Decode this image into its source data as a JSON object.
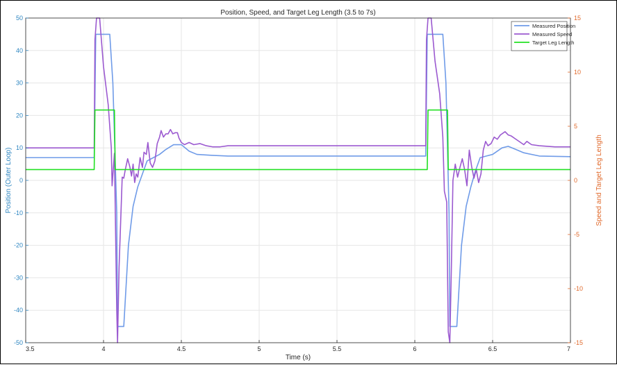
{
  "chart_data": {
    "type": "line",
    "title": "Position, Speed, and Target Leg Length (3.5 to 7s)",
    "xlabel": "Time (s)",
    "ylabel_left": "Position (Outer Loop)",
    "ylabel_right": "Speed and Target Leg Length",
    "xlim": [
      3.5,
      7
    ],
    "ylim_left": [
      -50,
      50
    ],
    "ylim_right": [
      -15,
      15
    ],
    "grid": true,
    "legend_position": "top-right",
    "x_ticks": [
      "3.5",
      "4",
      "4.5",
      "5",
      "5.5",
      "6",
      "6.5",
      "7"
    ],
    "y_ticks_left": [
      "-50",
      "-40",
      "-30",
      "-20",
      "-10",
      "0",
      "10",
      "20",
      "30",
      "40",
      "50"
    ],
    "y_ticks_right": [
      "-15",
      "-10",
      "-5",
      "0",
      "5",
      "10",
      "15"
    ],
    "colors": {
      "left_axis": "#2e86c1",
      "right_axis": "#e06a2c",
      "grid": "#e6e6e6"
    },
    "series": [
      {
        "name": "Measured Position",
        "axis": "left",
        "color": "#6f9be8",
        "points": [
          [
            3.5,
            7
          ],
          [
            3.94,
            7
          ],
          [
            3.95,
            45
          ],
          [
            4.04,
            45
          ],
          [
            4.06,
            30
          ],
          [
            4.085,
            -10
          ],
          [
            4.09,
            -45
          ],
          [
            4.13,
            -45
          ],
          [
            4.16,
            -20
          ],
          [
            4.19,
            -8
          ],
          [
            4.22,
            -2
          ],
          [
            4.25,
            2
          ],
          [
            4.28,
            6
          ],
          [
            4.32,
            7
          ],
          [
            4.36,
            8
          ],
          [
            4.4,
            9.5
          ],
          [
            4.45,
            11
          ],
          [
            4.5,
            11
          ],
          [
            4.55,
            9
          ],
          [
            4.6,
            8
          ],
          [
            4.7,
            7.7
          ],
          [
            4.8,
            7.5
          ],
          [
            5.0,
            7.5
          ],
          [
            5.5,
            7.5
          ],
          [
            6.07,
            7.5
          ],
          [
            6.08,
            45
          ],
          [
            6.18,
            45
          ],
          [
            6.2,
            30
          ],
          [
            6.22,
            -10
          ],
          [
            6.225,
            -45
          ],
          [
            6.27,
            -45
          ],
          [
            6.3,
            -20
          ],
          [
            6.33,
            -8
          ],
          [
            6.36,
            -2
          ],
          [
            6.39,
            3
          ],
          [
            6.42,
            7
          ],
          [
            6.46,
            7.5
          ],
          [
            6.5,
            8
          ],
          [
            6.56,
            10
          ],
          [
            6.6,
            10.5
          ],
          [
            6.65,
            9.5
          ],
          [
            6.7,
            8.5
          ],
          [
            6.8,
            7.5
          ],
          [
            7.0,
            7.3
          ]
        ]
      },
      {
        "name": "Measured Speed",
        "axis": "right",
        "color": "#9b59d0",
        "points": [
          [
            3.5,
            3
          ],
          [
            3.94,
            3
          ],
          [
            3.945,
            13
          ],
          [
            3.955,
            15
          ],
          [
            3.975,
            15
          ],
          [
            4.0,
            10.5
          ],
          [
            4.03,
            7
          ],
          [
            4.05,
            3
          ],
          [
            4.055,
            -0.5
          ],
          [
            4.07,
            2.5
          ],
          [
            4.085,
            -12
          ],
          [
            4.09,
            -15
          ],
          [
            4.1,
            -8
          ],
          [
            4.12,
            0.3
          ],
          [
            4.13,
            0.2
          ],
          [
            4.14,
            1
          ],
          [
            4.155,
            2
          ],
          [
            4.17,
            1.2
          ],
          [
            4.18,
            0.4
          ],
          [
            4.19,
            1.5
          ],
          [
            4.2,
            -0.2
          ],
          [
            4.21,
            0.6
          ],
          [
            4.22,
            0.3
          ],
          [
            4.235,
            2.1
          ],
          [
            4.25,
            1.2
          ],
          [
            4.26,
            2.6
          ],
          [
            4.275,
            2.4
          ],
          [
            4.285,
            3.5
          ],
          [
            4.3,
            1.6
          ],
          [
            4.315,
            1.2
          ],
          [
            4.33,
            1.8
          ],
          [
            4.345,
            3.4
          ],
          [
            4.36,
            4
          ],
          [
            4.37,
            4.6
          ],
          [
            4.385,
            4
          ],
          [
            4.4,
            4.3
          ],
          [
            4.415,
            4.3
          ],
          [
            4.43,
            4.7
          ],
          [
            4.445,
            4.3
          ],
          [
            4.46,
            4.4
          ],
          [
            4.475,
            4.4
          ],
          [
            4.485,
            3.9
          ],
          [
            4.5,
            3.5
          ],
          [
            4.52,
            3.3
          ],
          [
            4.55,
            3.5
          ],
          [
            4.58,
            3.3
          ],
          [
            4.62,
            3.4
          ],
          [
            4.66,
            3.2
          ],
          [
            4.7,
            3.1
          ],
          [
            4.75,
            3.1
          ],
          [
            4.8,
            3.2
          ],
          [
            5.0,
            3.2
          ],
          [
            5.5,
            3.2
          ],
          [
            6.07,
            3.2
          ],
          [
            6.075,
            13
          ],
          [
            6.085,
            15
          ],
          [
            6.105,
            15
          ],
          [
            6.13,
            11
          ],
          [
            6.16,
            8
          ],
          [
            6.18,
            4
          ],
          [
            6.19,
            -1
          ],
          [
            6.205,
            -2
          ],
          [
            6.215,
            -14
          ],
          [
            6.225,
            -15
          ],
          [
            6.235,
            -8
          ],
          [
            6.245,
            0
          ],
          [
            6.26,
            1.5
          ],
          [
            6.275,
            0.3
          ],
          [
            6.29,
            1.2
          ],
          [
            6.305,
            2
          ],
          [
            6.32,
            1
          ],
          [
            6.335,
            -0.5
          ],
          [
            6.35,
            2.8
          ],
          [
            6.365,
            1.3
          ],
          [
            6.38,
            0.2
          ],
          [
            6.395,
            1
          ],
          [
            6.41,
            -0.2
          ],
          [
            6.425,
            0.6
          ],
          [
            6.44,
            2.8
          ],
          [
            6.455,
            3.6
          ],
          [
            6.47,
            3.2
          ],
          [
            6.49,
            3.4
          ],
          [
            6.51,
            4
          ],
          [
            6.53,
            3.8
          ],
          [
            6.55,
            4.2
          ],
          [
            6.58,
            4.5
          ],
          [
            6.6,
            4.2
          ],
          [
            6.62,
            4.1
          ],
          [
            6.65,
            3.8
          ],
          [
            6.68,
            3.5
          ],
          [
            6.7,
            3.3
          ],
          [
            6.72,
            3.6
          ],
          [
            6.75,
            3.3
          ],
          [
            6.8,
            3.2
          ],
          [
            6.9,
            3.1
          ],
          [
            7.0,
            3.1
          ]
        ]
      },
      {
        "name": "Target Leg Length",
        "axis": "right",
        "color": "#22e022",
        "points": [
          [
            3.5,
            1
          ],
          [
            3.94,
            1
          ],
          [
            3.945,
            6.5
          ],
          [
            4.07,
            6.5
          ],
          [
            4.075,
            1
          ],
          [
            6.08,
            1
          ],
          [
            6.085,
            6.5
          ],
          [
            6.21,
            6.5
          ],
          [
            6.215,
            1
          ],
          [
            7.0,
            1
          ]
        ]
      }
    ]
  }
}
